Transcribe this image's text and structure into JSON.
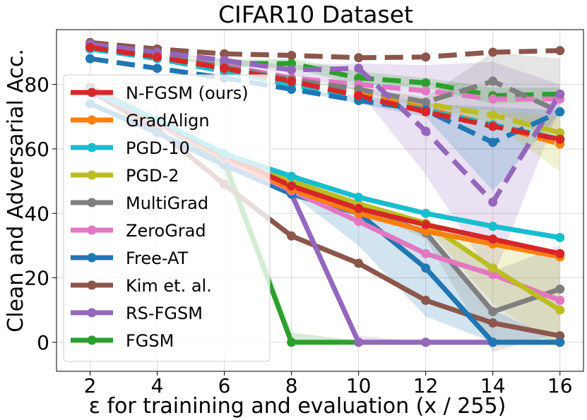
{
  "chart_data": {
    "type": "line",
    "title": "CIFAR10 Dataset",
    "xlabel": "ε for trainining and evaluation (x / 255)",
    "ylabel": "Clean and Adversarial Acc.",
    "x": [
      2,
      4,
      6,
      8,
      10,
      12,
      14,
      16
    ],
    "xlim": [
      1.0,
      16.7
    ],
    "ylim": [
      -9,
      97
    ],
    "xticks": [
      2,
      4,
      6,
      8,
      10,
      12,
      14,
      16
    ],
    "yticks": [
      0,
      20,
      40,
      60,
      80
    ],
    "grid": true,
    "legend_position": "left",
    "legend": [
      {
        "name": "N-FGSM (ours)",
        "color": "#d62728"
      },
      {
        "name": "GradAlign",
        "color": "#ff7f0e"
      },
      {
        "name": "PGD-10",
        "color": "#17becf"
      },
      {
        "name": "PGD-2",
        "color": "#bcbd22"
      },
      {
        "name": "MultiGrad",
        "color": "#7f7f7f"
      },
      {
        "name": "ZeroGrad",
        "color": "#e377c2"
      },
      {
        "name": "Free-AT",
        "color": "#1f77b4"
      },
      {
        "name": "Kim et. al.",
        "color": "#8c564b"
      },
      {
        "name": "RS-FGSM",
        "color": "#9467bd"
      },
      {
        "name": "FGSM",
        "color": "#2ca02c"
      }
    ],
    "series": [
      {
        "name": "Kim et. al.",
        "kind": "clean",
        "color": "#8c564b",
        "values": [
          93.0,
          91.0,
          89.5,
          89.0,
          88.3,
          88.5,
          90.0,
          90.5
        ]
      },
      {
        "name": "FGSM",
        "kind": "clean",
        "color": "#2ca02c",
        "values": [
          92.0,
          88.5,
          86.5,
          86.5,
          82.0,
          80.5,
          76.5,
          77.0
        ]
      },
      {
        "name": "ZeroGrad",
        "kind": "clean",
        "color": "#e377c2",
        "values": [
          92.5,
          89.0,
          86.0,
          82.0,
          80.0,
          78.0,
          75.5,
          75.5
        ]
      },
      {
        "name": "PGD-2",
        "kind": "clean",
        "color": "#bcbd22",
        "values": [
          92.0,
          88.5,
          85.0,
          81.0,
          77.5,
          74.0,
          70.5,
          65.0
        ]
      },
      {
        "name": "GradAlign",
        "kind": "clean",
        "color": "#ff7f0e",
        "values": [
          91.5,
          88.5,
          85.0,
          81.0,
          77.0,
          72.5,
          67.5,
          61.5
        ]
      },
      {
        "name": "PGD-10",
        "kind": "clean",
        "color": "#17becf",
        "values": [
          91.0,
          88.0,
          84.0,
          80.0,
          76.0,
          72.0,
          67.5,
          63.0
        ]
      },
      {
        "name": "MultiGrad",
        "kind": "clean",
        "color": "#7f7f7f",
        "values": [
          92.0,
          89.0,
          85.5,
          81.5,
          78.5,
          74.5,
          81.0,
          71.5
        ]
      },
      {
        "name": "RS-FGSM",
        "kind": "clean",
        "color": "#9467bd",
        "values": [
          92.5,
          90.0,
          87.5,
          84.5,
          85.0,
          65.5,
          43.5,
          77.0
        ]
      },
      {
        "name": "Free-AT",
        "kind": "clean",
        "color": "#1f77b4",
        "values": [
          88.0,
          85.0,
          82.0,
          78.5,
          75.0,
          72.0,
          62.0,
          71.5
        ]
      },
      {
        "name": "N-FGSM (ours)",
        "kind": "clean",
        "color": "#d62728",
        "values": [
          91.5,
          88.5,
          85.0,
          81.0,
          76.5,
          71.5,
          67.0,
          63.0
        ]
      },
      {
        "name": "FGSM",
        "kind": "robust",
        "color": "#2ca02c",
        "values": [
          79.0,
          68.0,
          56.0,
          0.0,
          0.0,
          0.0,
          0.0,
          0.0
        ]
      },
      {
        "name": "Kim et. al.",
        "kind": "robust",
        "color": "#8c564b",
        "values": [
          78.0,
          66.0,
          49.0,
          33.0,
          24.5,
          13.0,
          6.0,
          2.0
        ]
      },
      {
        "name": "RS-FGSM",
        "kind": "robust",
        "color": "#9467bd",
        "values": [
          78.0,
          68.0,
          57.0,
          46.0,
          0.0,
          0.0,
          0.0,
          0.0
        ]
      },
      {
        "name": "Free-AT",
        "kind": "robust",
        "color": "#1f77b4",
        "values": [
          74.0,
          65.0,
          55.0,
          46.0,
          40.0,
          23.0,
          0.0,
          0.0
        ]
      },
      {
        "name": "MultiGrad",
        "kind": "robust",
        "color": "#7f7f7f",
        "values": [
          79.0,
          69.0,
          58.0,
          49.0,
          42.0,
          34.0,
          9.5,
          16.5
        ]
      },
      {
        "name": "ZeroGrad",
        "kind": "robust",
        "color": "#e377c2",
        "values": [
          79.0,
          68.0,
          57.0,
          47.0,
          37.5,
          27.5,
          21.0,
          13.0
        ]
      },
      {
        "name": "PGD-2",
        "kind": "robust",
        "color": "#bcbd22",
        "values": [
          79.0,
          69.0,
          58.0,
          50.0,
          43.0,
          37.0,
          23.0,
          10.0
        ]
      },
      {
        "name": "GradAlign",
        "kind": "robust",
        "color": "#ff7f0e",
        "values": [
          79.0,
          68.5,
          57.5,
          47.5,
          40.0,
          34.5,
          30.5,
          26.5
        ]
      },
      {
        "name": "N-FGSM (ours)",
        "kind": "robust",
        "color": "#d62728",
        "values": [
          79.0,
          68.5,
          58.0,
          48.5,
          41.5,
          36.5,
          32.0,
          27.5
        ]
      },
      {
        "name": "PGD-10",
        "kind": "robust",
        "color": "#17becf",
        "values": [
          78.5,
          69.0,
          58.5,
          51.5,
          45.0,
          40.0,
          36.0,
          32.5
        ]
      }
    ],
    "bands": [
      {
        "name": "RS-FGSM",
        "kind": "clean",
        "color": "#9467bd",
        "upper": [
          92.5,
          90.0,
          88.0,
          86.0,
          86.5,
          86.0,
          87.0,
          80.0
        ],
        "lower": [
          92.5,
          90.0,
          87.0,
          83.0,
          78.0,
          52.0,
          20.0,
          73.0
        ]
      },
      {
        "name": "Free-AT",
        "kind": "clean",
        "color": "#1f77b4",
        "upper": [
          88.0,
          85.0,
          82.0,
          78.5,
          76.5,
          74.0,
          73.0,
          72.0
        ],
        "lower": [
          88.0,
          85.0,
          82.0,
          78.5,
          74.0,
          70.0,
          47.0,
          71.0
        ]
      },
      {
        "name": "MultiGrad",
        "kind": "clean",
        "color": "#7f7f7f",
        "upper": [
          92.0,
          89.0,
          85.5,
          81.5,
          79.0,
          76.0,
          90.0,
          88.0
        ],
        "lower": [
          92.0,
          89.0,
          85.5,
          81.5,
          78.0,
          73.0,
          72.0,
          62.0
        ]
      },
      {
        "name": "PGD-2",
        "kind": "clean",
        "color": "#bcbd22",
        "upper": [
          92.0,
          88.5,
          85.0,
          81.0,
          77.5,
          74.5,
          72.0,
          70.0
        ],
        "lower": [
          92.0,
          88.5,
          85.0,
          81.0,
          77.5,
          73.5,
          68.0,
          53.0
        ]
      },
      {
        "name": "FGSM",
        "kind": "clean",
        "color": "#2ca02c",
        "upper": [
          92.0,
          88.5,
          87.5,
          88.0,
          84.0,
          82.0,
          79.0,
          79.0
        ],
        "lower": [
          92.0,
          88.5,
          85.5,
          85.0,
          80.0,
          79.0,
          74.0,
          75.0
        ]
      },
      {
        "name": "Free-AT",
        "kind": "robust",
        "color": "#1f77b4",
        "upper": [
          74.0,
          65.0,
          55.0,
          46.0,
          41.0,
          35.0,
          10.0,
          0.5
        ],
        "lower": [
          74.0,
          65.0,
          55.0,
          46.0,
          30.0,
          8.0,
          0.0,
          0.0
        ]
      },
      {
        "name": "PGD-2",
        "kind": "robust",
        "color": "#bcbd22",
        "upper": [
          79.0,
          69.0,
          58.0,
          50.0,
          43.0,
          38.0,
          30.0,
          26.0
        ],
        "lower": [
          79.0,
          69.0,
          58.0,
          50.0,
          43.0,
          36.0,
          12.0,
          -2.0
        ]
      },
      {
        "name": "MultiGrad",
        "kind": "robust",
        "color": "#7f7f7f",
        "upper": [
          79.0,
          69.0,
          58.0,
          49.0,
          42.5,
          36.0,
          22.0,
          30.0
        ],
        "lower": [
          79.0,
          69.0,
          58.0,
          49.0,
          41.5,
          32.0,
          -3.0,
          3.0
        ]
      },
      {
        "name": "FGSM",
        "kind": "robust",
        "color": "#2ca02c",
        "upper": [
          79.0,
          68.0,
          60.0,
          3.0,
          0.5,
          0.0,
          0.0,
          0.0
        ],
        "lower": [
          79.0,
          68.0,
          52.0,
          0.0,
          0.0,
          0.0,
          0.0,
          0.0
        ]
      },
      {
        "name": "RS-FGSM",
        "kind": "robust",
        "color": "#9467bd",
        "upper": [
          78.0,
          68.0,
          57.0,
          47.0,
          2.0,
          0.0,
          0.0,
          0.0
        ],
        "lower": [
          78.0,
          68.0,
          57.0,
          45.0,
          0.0,
          0.0,
          0.0,
          0.0
        ]
      }
    ]
  }
}
